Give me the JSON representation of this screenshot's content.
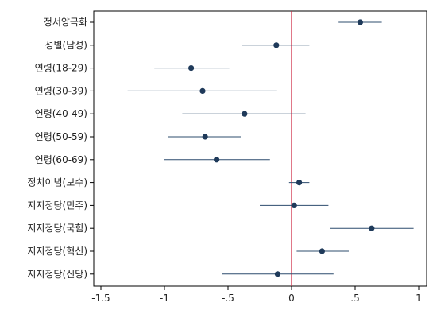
{
  "chart_data": {
    "type": "scatter",
    "subtype": "coefficient-plot",
    "orientation": "horizontal",
    "categories": [
      "정서양극화",
      "성별(남성)",
      "연령(18-29)",
      "연령(30-39)",
      "연령(40-49)",
      "연령(50-59)",
      "연령(60-69)",
      "정치이념(보수)",
      "지지정당(민주)",
      "지지정당(국힘)",
      "지지정당(혁신)",
      "지지정당(신당)"
    ],
    "estimates": [
      0.54,
      -0.12,
      -0.79,
      -0.7,
      -0.37,
      -0.68,
      -0.59,
      0.06,
      0.02,
      0.63,
      0.24,
      -0.11
    ],
    "ci_low": [
      0.37,
      -0.39,
      -1.08,
      -1.29,
      -0.86,
      -0.97,
      -1.0,
      -0.02,
      -0.25,
      0.3,
      0.04,
      -0.55
    ],
    "ci_high": [
      0.71,
      0.14,
      -0.49,
      -0.12,
      0.11,
      -0.4,
      -0.17,
      0.14,
      0.29,
      0.96,
      0.45,
      0.33
    ],
    "xlim": [
      -1.5,
      1
    ],
    "xticks": [
      -1.5,
      -1,
      -0.5,
      0,
      0.5,
      1
    ],
    "xtick_labels": [
      "-1.5",
      "-1",
      "-.5",
      "0",
      ".5",
      "1"
    ],
    "reference_line_x": 0,
    "grid": false,
    "colors": {
      "marker": "#1f3a5a",
      "ci_line": "#2d4c6e",
      "reference_line": "#cc1f3a",
      "frame": "#000000"
    }
  }
}
